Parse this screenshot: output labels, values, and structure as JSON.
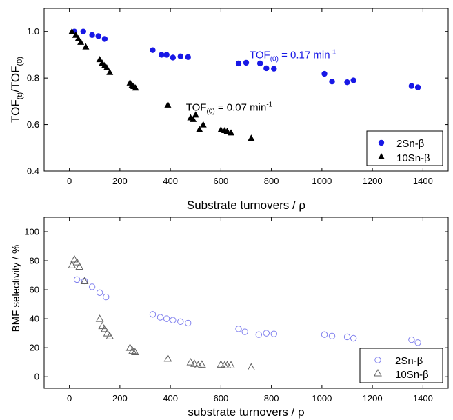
{
  "chart_data": [
    {
      "type": "scatter",
      "xlabel": "Substrate turnovers / ρ",
      "ylabel_main": "TOF",
      "ylabel_sub1": "(t)",
      "ylabel_mid": "/TOF",
      "ylabel_sub2": "(0)",
      "xlim": [
        -100,
        1500
      ],
      "ylim": [
        0.4,
        1.1
      ],
      "xticks": [
        0,
        200,
        400,
        600,
        800,
        1000,
        1200,
        1400
      ],
      "yticks": [
        0.4,
        0.6,
        0.8,
        1.0
      ],
      "ytick_labels": [
        "0.4",
        "0.6",
        "0.8",
        "1.0"
      ],
      "legend_position": "bottom-right",
      "series": [
        {
          "name": "2Sn-β",
          "marker": "filled-circle",
          "color": "#1818e6",
          "points": [
            [
              20,
              1.0
            ],
            [
              55,
              1.0
            ],
            [
              90,
              0.985
            ],
            [
              115,
              0.98
            ],
            [
              140,
              0.968
            ],
            [
              330,
              0.92
            ],
            [
              365,
              0.9
            ],
            [
              385,
              0.9
            ],
            [
              410,
              0.888
            ],
            [
              440,
              0.893
            ],
            [
              470,
              0.89
            ],
            [
              670,
              0.863
            ],
            [
              700,
              0.866
            ],
            [
              755,
              0.863
            ],
            [
              780,
              0.842
            ],
            [
              810,
              0.84
            ],
            [
              1010,
              0.818
            ],
            [
              1040,
              0.785
            ],
            [
              1100,
              0.782
            ],
            [
              1125,
              0.79
            ],
            [
              1355,
              0.766
            ],
            [
              1380,
              0.76
            ]
          ]
        },
        {
          "name": "10Sn-β",
          "marker": "filled-triangle",
          "color": "#000000",
          "points": [
            [
              10,
              1.0
            ],
            [
              25,
              0.985
            ],
            [
              35,
              0.97
            ],
            [
              45,
              0.955
            ],
            [
              65,
              0.935
            ],
            [
              120,
              0.88
            ],
            [
              130,
              0.865
            ],
            [
              140,
              0.855
            ],
            [
              148,
              0.845
            ],
            [
              160,
              0.825
            ],
            [
              240,
              0.78
            ],
            [
              248,
              0.77
            ],
            [
              255,
              0.765
            ],
            [
              262,
              0.758
            ],
            [
              390,
              0.685
            ],
            [
              480,
              0.63
            ],
            [
              490,
              0.623
            ],
            [
              500,
              0.642
            ],
            [
              515,
              0.58
            ],
            [
              530,
              0.6
            ],
            [
              600,
              0.578
            ],
            [
              615,
              0.575
            ],
            [
              625,
              0.572
            ],
            [
              640,
              0.565
            ],
            [
              720,
              0.542
            ]
          ]
        }
      ],
      "annotations": [
        {
          "prefix": "TOF",
          "sub": "(0)",
          "middle": " = 0.17 min",
          "sup": "-1",
          "color": "#1818e6",
          "x": 885,
          "y": 0.885
        },
        {
          "prefix": "TOF",
          "sub": "(0)",
          "middle": " = 0.07 min",
          "sup": "-1",
          "color": "#000000",
          "x": 633,
          "y": 0.66
        }
      ]
    },
    {
      "type": "scatter",
      "xlabel": "substrate turnovers / ρ",
      "ylabel": "BMF selectivity / %",
      "xlim": [
        -100,
        1500
      ],
      "ylim": [
        -8,
        110
      ],
      "xticks": [
        0,
        200,
        400,
        600,
        800,
        1000,
        1200,
        1400
      ],
      "yticks": [
        0,
        20,
        40,
        60,
        80,
        100
      ],
      "ytick_labels": [
        "0",
        "20",
        "40",
        "60",
        "80",
        "100"
      ],
      "legend_position": "bottom-right",
      "series": [
        {
          "name": "2Sn-β",
          "marker": "open-circle",
          "color": "#8080ee",
          "points": [
            [
              30,
              67
            ],
            [
              60,
              66
            ],
            [
              90,
              62
            ],
            [
              120,
              58
            ],
            [
              145,
              55
            ],
            [
              330,
              43
            ],
            [
              360,
              41
            ],
            [
              385,
              40
            ],
            [
              410,
              39
            ],
            [
              440,
              38
            ],
            [
              470,
              37
            ],
            [
              670,
              33
            ],
            [
              695,
              31
            ],
            [
              750,
              29
            ],
            [
              780,
              30
            ],
            [
              810,
              29.5
            ],
            [
              1010,
              29
            ],
            [
              1040,
              28
            ],
            [
              1100,
              27.5
            ],
            [
              1125,
              26.5
            ],
            [
              1355,
              25.5
            ],
            [
              1380,
              23.5
            ]
          ]
        },
        {
          "name": "10Sn-β",
          "marker": "open-triangle",
          "color": "#606060",
          "points": [
            [
              10,
              77
            ],
            [
              20,
              81
            ],
            [
              30,
              79
            ],
            [
              40,
              76
            ],
            [
              60,
              66
            ],
            [
              120,
              40
            ],
            [
              130,
              35
            ],
            [
              140,
              33
            ],
            [
              150,
              30
            ],
            [
              160,
              28
            ],
            [
              240,
              20
            ],
            [
              250,
              18
            ],
            [
              260,
              17
            ],
            [
              390,
              12.5
            ],
            [
              480,
              10
            ],
            [
              495,
              9
            ],
            [
              510,
              8
            ],
            [
              525,
              8.5
            ],
            [
              600,
              8.5
            ],
            [
              615,
              8
            ],
            [
              625,
              8
            ],
            [
              640,
              8
            ],
            [
              720,
              6.5
            ]
          ]
        }
      ]
    }
  ]
}
